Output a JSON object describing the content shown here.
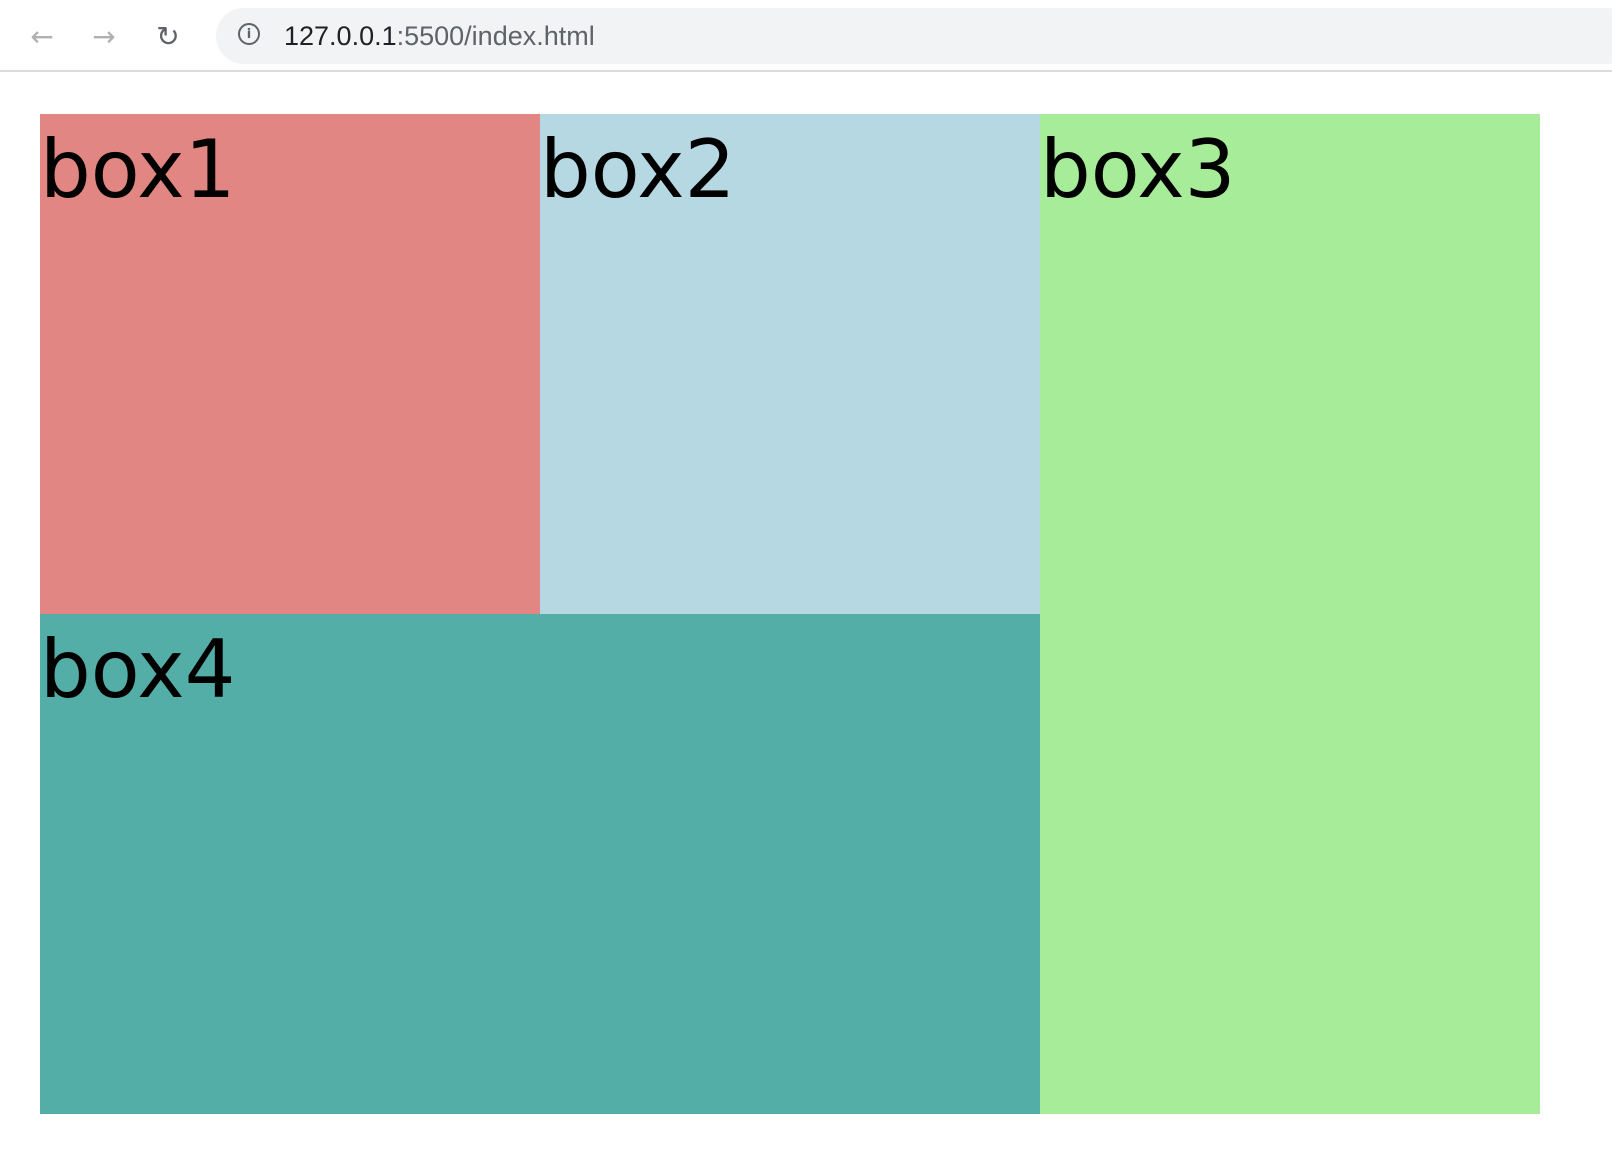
{
  "browser": {
    "url_host": "127.0.0.1",
    "url_rest": ":5500/index.html",
    "icons": [
      "back-arrow-icon",
      "forward-arrow-icon",
      "reload-icon",
      "info-icon"
    ]
  },
  "boxes": [
    {
      "label": "box1",
      "color": "#e18682"
    },
    {
      "label": "box2",
      "color": "#b6d8e3"
    },
    {
      "label": "box3",
      "color": "#a7ec98"
    },
    {
      "label": "box4",
      "color": "#54aea8"
    }
  ]
}
